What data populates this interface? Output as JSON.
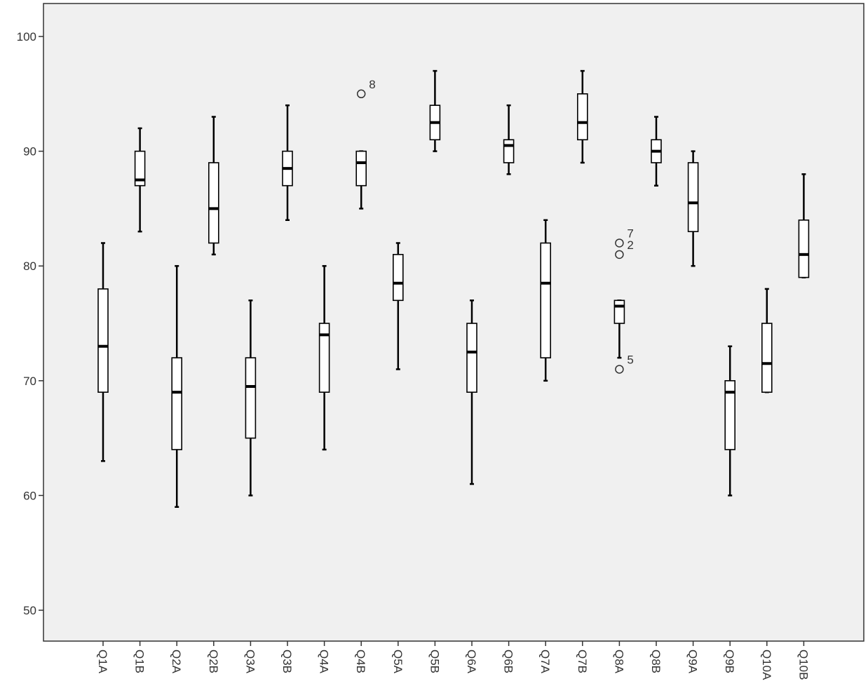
{
  "chart_data": {
    "type": "boxplot",
    "title": "",
    "xlabel": "",
    "ylabel": "",
    "ylim": [
      47,
      103
    ],
    "y_ticks": [
      50,
      60,
      70,
      80,
      90,
      100
    ],
    "grid": false,
    "colors": {
      "background": "#f0f0f0",
      "box_fill": "#ffffff",
      "stroke": "#000000",
      "frame": "#333333"
    },
    "categories": [
      {
        "label": "Q1A",
        "min": 63,
        "q1": 69,
        "median": 73,
        "q3": 78,
        "max": 82,
        "outliers": []
      },
      {
        "label": "Q1B",
        "min": 83,
        "q1": 87,
        "median": 87.5,
        "q3": 90,
        "max": 92,
        "outliers": []
      },
      {
        "label": "Q2A",
        "min": 59,
        "q1": 64,
        "median": 69,
        "q3": 72,
        "max": 80,
        "outliers": []
      },
      {
        "label": "Q2B",
        "min": 81,
        "q1": 82,
        "median": 85,
        "q3": 89,
        "max": 93,
        "outliers": []
      },
      {
        "label": "Q3A",
        "min": 60,
        "q1": 65,
        "median": 69.5,
        "q3": 72,
        "max": 77,
        "outliers": []
      },
      {
        "label": "Q3B",
        "min": 84,
        "q1": 87,
        "median": 88.5,
        "q3": 90,
        "max": 94,
        "outliers": []
      },
      {
        "label": "Q4A",
        "min": 64,
        "q1": 69,
        "median": 74,
        "q3": 75,
        "max": 80,
        "outliers": []
      },
      {
        "label": "Q4B",
        "min": 85,
        "q1": 87,
        "median": 89,
        "q3": 90,
        "max": 90,
        "outliers": [
          {
            "value": 95,
            "label": "8"
          }
        ]
      },
      {
        "label": "Q5A",
        "min": 71,
        "q1": 77,
        "median": 78.5,
        "q3": 81,
        "max": 82,
        "outliers": []
      },
      {
        "label": "Q5B",
        "min": 90,
        "q1": 91,
        "median": 92.5,
        "q3": 94,
        "max": 97,
        "outliers": []
      },
      {
        "label": "Q6A",
        "min": 61,
        "q1": 69,
        "median": 72.5,
        "q3": 75,
        "max": 77,
        "outliers": []
      },
      {
        "label": "Q6B",
        "min": 88,
        "q1": 89,
        "median": 90.5,
        "q3": 91,
        "max": 94,
        "outliers": []
      },
      {
        "label": "Q7A",
        "min": 70,
        "q1": 72,
        "median": 78.5,
        "q3": 82,
        "max": 84,
        "outliers": []
      },
      {
        "label": "Q7B",
        "min": 89,
        "q1": 91,
        "median": 92.5,
        "q3": 95,
        "max": 97,
        "outliers": []
      },
      {
        "label": "Q8A",
        "min": 72,
        "q1": 75,
        "median": 76.5,
        "q3": 77,
        "max": 77,
        "outliers": [
          {
            "value": 82,
            "label": "7"
          },
          {
            "value": 81,
            "label": "2"
          },
          {
            "value": 71,
            "label": "5"
          }
        ]
      },
      {
        "label": "Q8B",
        "min": 87,
        "q1": 89,
        "median": 90,
        "q3": 91,
        "max": 93,
        "outliers": []
      },
      {
        "label": "Q9A",
        "min": 80,
        "q1": 83,
        "median": 85.5,
        "q3": 89,
        "max": 90,
        "outliers": []
      },
      {
        "label": "Q9B",
        "min": 60,
        "q1": 64,
        "median": 69,
        "q3": 70,
        "max": 73,
        "outliers": []
      },
      {
        "label": "Q10A",
        "min": 69,
        "q1": 69,
        "median": 71.5,
        "q3": 75,
        "max": 78,
        "outliers": []
      },
      {
        "label": "Q10B",
        "min": 79,
        "q1": 79,
        "median": 81,
        "q3": 84,
        "max": 88,
        "outliers": []
      }
    ]
  }
}
